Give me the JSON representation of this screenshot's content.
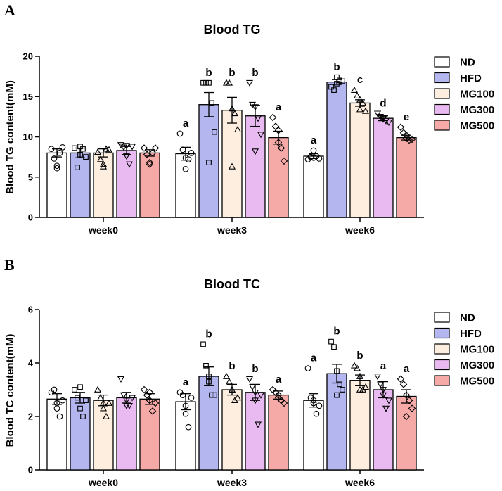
{
  "colors": {
    "ND": "#ffffff",
    "HFD": "#b4b6ef",
    "MG100": "#fdeee0",
    "MG300": "#e9baf1",
    "MG500": "#f6aaa7",
    "axis": "#000000"
  },
  "legend": [
    "ND",
    "HFD",
    "MG100",
    "MG300",
    "MG500"
  ],
  "chart_data": [
    {
      "panel": "A",
      "type": "bar",
      "title": "Blood TG",
      "xlabel": "",
      "ylabel": "Blood TG content(mM)",
      "ylim": [
        0,
        20
      ],
      "yticks": [
        "0",
        "5",
        "10",
        "15",
        "20"
      ],
      "categories": [
        "week0",
        "week3",
        "week6"
      ],
      "series": [
        {
          "name": "ND",
          "marker": "circle",
          "values": [
            8.0,
            7.9,
            7.6
          ],
          "sem": [
            0.5,
            0.8,
            0.3
          ],
          "letters": [
            "",
            "a",
            "a"
          ],
          "points": [
            [
              8.5,
              7.3,
              6.1,
              8.0,
              8.7,
              6.4
            ],
            [
              10.4,
              8.4,
              6.0,
              7.2,
              8.0,
              7.4
            ],
            [
              7.2,
              7.5,
              8.3,
              7.6,
              7.3,
              7.4
            ]
          ]
        },
        {
          "name": "HFD",
          "marker": "square",
          "values": [
            8.0,
            14.0,
            16.8
          ],
          "sem": [
            0.6,
            1.5,
            0.3
          ],
          "letters": [
            "",
            "b",
            "b"
          ],
          "points": [
            [
              8.6,
              6.2,
              7.8,
              8.5,
              7.5,
              8.8
            ],
            [
              16.7,
              16.7,
              16.7,
              14.2,
              10.6,
              6.8
            ],
            [
              16.2,
              15.8,
              17.4,
              17.0,
              16.9,
              16.6
            ]
          ]
        },
        {
          "name": "MG100",
          "marker": "triangle-up",
          "values": [
            8.0,
            13.3,
            14.2
          ],
          "sem": [
            0.5,
            1.6,
            0.4
          ],
          "letters": [
            "",
            "b",
            "c"
          ],
          "points": [
            [
              8.1,
              7.2,
              6.3,
              8.5,
              8.4,
              6.6
            ],
            [
              16.7,
              16.7,
              13.5,
              12.9,
              10.9,
              6.3
            ],
            [
              15.8,
              15.1,
              14.6,
              14.2,
              13.2,
              13.4
            ]
          ]
        },
        {
          "name": "MG300",
          "marker": "triangle-down",
          "values": [
            8.3,
            12.6,
            12.3
          ],
          "sem": [
            0.5,
            1.3,
            0.3
          ],
          "letters": [
            "",
            "b",
            "d"
          ],
          "points": [
            [
              9.0,
              8.7,
              7.6,
              6.6,
              8.8,
              8.9
            ],
            [
              16.7,
              14.0,
              13.7,
              12.3,
              10.3,
              8.2
            ],
            [
              12.9,
              12.5,
              12.2,
              12.0,
              11.8,
              12.4
            ]
          ]
        },
        {
          "name": "MG500",
          "marker": "diamond",
          "values": [
            8.0,
            9.9,
            9.9
          ],
          "sem": [
            0.4,
            0.8,
            0.3
          ],
          "letters": [
            "",
            "a",
            "e"
          ],
          "points": [
            [
              8.6,
              7.8,
              6.6,
              8.0,
              8.6,
              6.8
            ],
            [
              12.4,
              11.3,
              9.3,
              8.6,
              7.0,
              10.8
            ],
            [
              11.2,
              10.5,
              9.8,
              9.6,
              9.7,
              10.2
            ]
          ]
        }
      ]
    },
    {
      "panel": "B",
      "type": "bar",
      "title": "Blood TC",
      "xlabel": "",
      "ylabel": "Blood TC content(mM)",
      "ylim": [
        0,
        6
      ],
      "yticks": [
        "0",
        "2",
        "4",
        "6"
      ],
      "categories": [
        "week0",
        "week3",
        "week6"
      ],
      "series": [
        {
          "name": "ND",
          "marker": "circle",
          "values": [
            2.65,
            2.55,
            2.6
          ],
          "sem": [
            0.2,
            0.3,
            0.25
          ],
          "letters": [
            "",
            "a",
            "a"
          ],
          "points": [
            [
              2.9,
              3.0,
              2.3,
              2.0,
              2.6,
              2.5
            ],
            [
              2.9,
              2.8,
              2.1,
              1.6,
              2.7,
              2.4
            ],
            [
              3.8,
              2.7,
              2.5,
              2.1,
              2.4,
              2.6
            ]
          ]
        },
        {
          "name": "HFD",
          "marker": "square",
          "values": [
            2.7,
            3.5,
            3.6
          ],
          "sem": [
            0.2,
            0.35,
            0.35
          ],
          "letters": [
            "",
            "b",
            "b"
          ],
          "points": [
            [
              3.0,
              2.7,
              2.3,
              2.0,
              2.6,
              3.1
            ],
            [
              4.7,
              3.9,
              3.3,
              2.8,
              2.8,
              3.5
            ],
            [
              4.8,
              4.6,
              3.7,
              3.2,
              3.0,
              2.8
            ]
          ]
        },
        {
          "name": "MG100",
          "marker": "triangle-up",
          "values": [
            2.6,
            3.0,
            3.35
          ],
          "sem": [
            0.2,
            0.2,
            0.2
          ],
          "letters": [
            "",
            "b",
            "b"
          ],
          "points": [
            [
              3.0,
              2.7,
              2.5,
              2.0,
              2.5,
              2.3
            ],
            [
              3.5,
              3.3,
              3.0,
              2.6,
              2.7,
              3.0
            ],
            [
              3.9,
              3.8,
              3.5,
              3.0,
              3.1,
              3.0
            ]
          ]
        },
        {
          "name": "MG300",
          "marker": "triangle-down",
          "values": [
            2.7,
            2.9,
            3.0
          ],
          "sem": [
            0.2,
            0.3,
            0.3
          ],
          "letters": [
            "",
            "b",
            "a"
          ],
          "points": [
            [
              3.4,
              2.8,
              2.6,
              2.4,
              2.7,
              2.4
            ],
            [
              3.4,
              3.1,
              2.6,
              1.7,
              2.8,
              2.9
            ],
            [
              3.5,
              3.2,
              2.8,
              2.3,
              2.6,
              3.0
            ]
          ]
        },
        {
          "name": "MG500",
          "marker": "diamond",
          "values": [
            2.65,
            2.8,
            2.75
          ],
          "sem": [
            0.2,
            0.15,
            0.25
          ],
          "letters": [
            "",
            "a",
            "a"
          ],
          "points": [
            [
              3.0,
              2.8,
              2.6,
              2.2,
              2.5,
              2.9
            ],
            [
              3.0,
              2.9,
              2.7,
              2.6,
              2.5,
              2.8
            ],
            [
              3.4,
              3.2,
              2.8,
              2.6,
              2.3,
              2.0
            ]
          ]
        }
      ]
    }
  ]
}
